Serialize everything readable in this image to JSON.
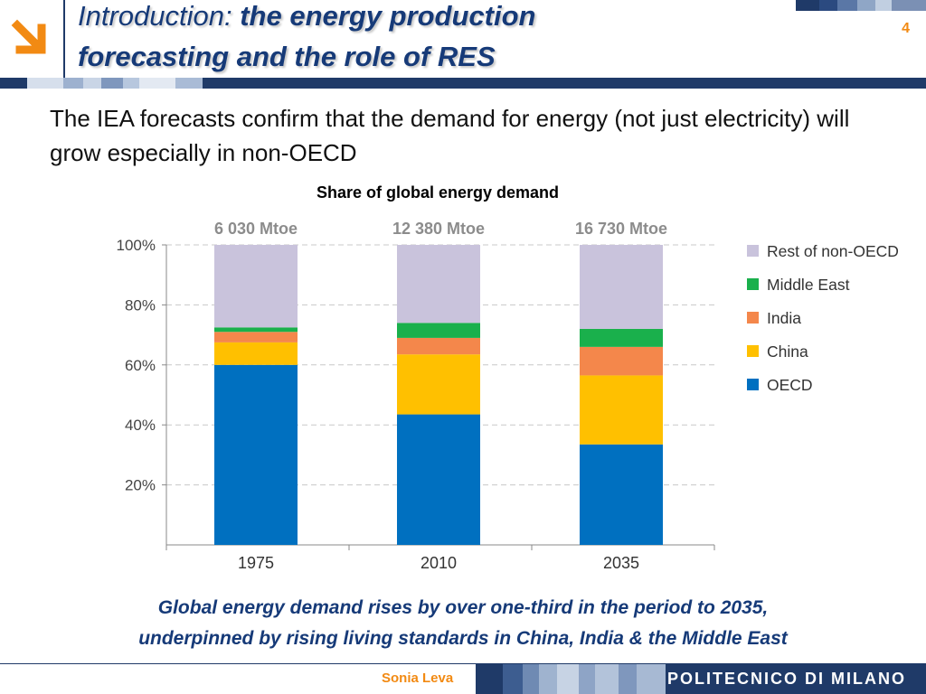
{
  "header": {
    "title_line1_prefix": "Introduction: ",
    "title_line1_rest": "the energy production",
    "title_line2": "forecasting and the role of RES",
    "slide_number": "4"
  },
  "intro_text": "The IEA forecasts confirm that the demand for energy (not just electricity) will grow especially in non-OECD",
  "chart_data": {
    "type": "bar",
    "stacked": true,
    "title": "Share of global energy demand",
    "categories": [
      "1975",
      "2010",
      "2035"
    ],
    "totals": [
      "6 030 Mtoe",
      "12 380 Mtoe",
      "16 730 Mtoe"
    ],
    "ylim": [
      0,
      100
    ],
    "yticks": [
      20,
      40,
      60,
      80,
      100
    ],
    "ytick_labels": [
      "20%",
      "40%",
      "60%",
      "80%",
      "100%"
    ],
    "grid": true,
    "legend_position": "right",
    "series": [
      {
        "name": "OECD",
        "color": "#0070c0",
        "values": [
          60,
          43.5,
          33.5
        ]
      },
      {
        "name": "China",
        "color": "#ffc000",
        "values": [
          7.5,
          20,
          23
        ]
      },
      {
        "name": "India",
        "color": "#f4874b",
        "values": [
          3.5,
          5.5,
          9.5
        ]
      },
      {
        "name": "Middle East",
        "color": "#1ab04c",
        "values": [
          1.5,
          5,
          6
        ]
      },
      {
        "name": "Rest of non-OECD",
        "color": "#c9c3dc",
        "values": [
          27.5,
          26,
          28
        ]
      }
    ]
  },
  "caption": {
    "line1": "Global energy demand rises by over one-third in the period to 2035,",
    "line2": "underpinned by rising living standards in China, India & the Middle East"
  },
  "footer": {
    "author": "Sonia Leva",
    "institution": "POLITECNICO DI MILANO"
  },
  "colors": {
    "title": "#163a78",
    "accent": "#f28a13",
    "dark_blue": "#1f3a68"
  },
  "icons": {
    "logo": "orange-arrow-down-right-icon"
  }
}
